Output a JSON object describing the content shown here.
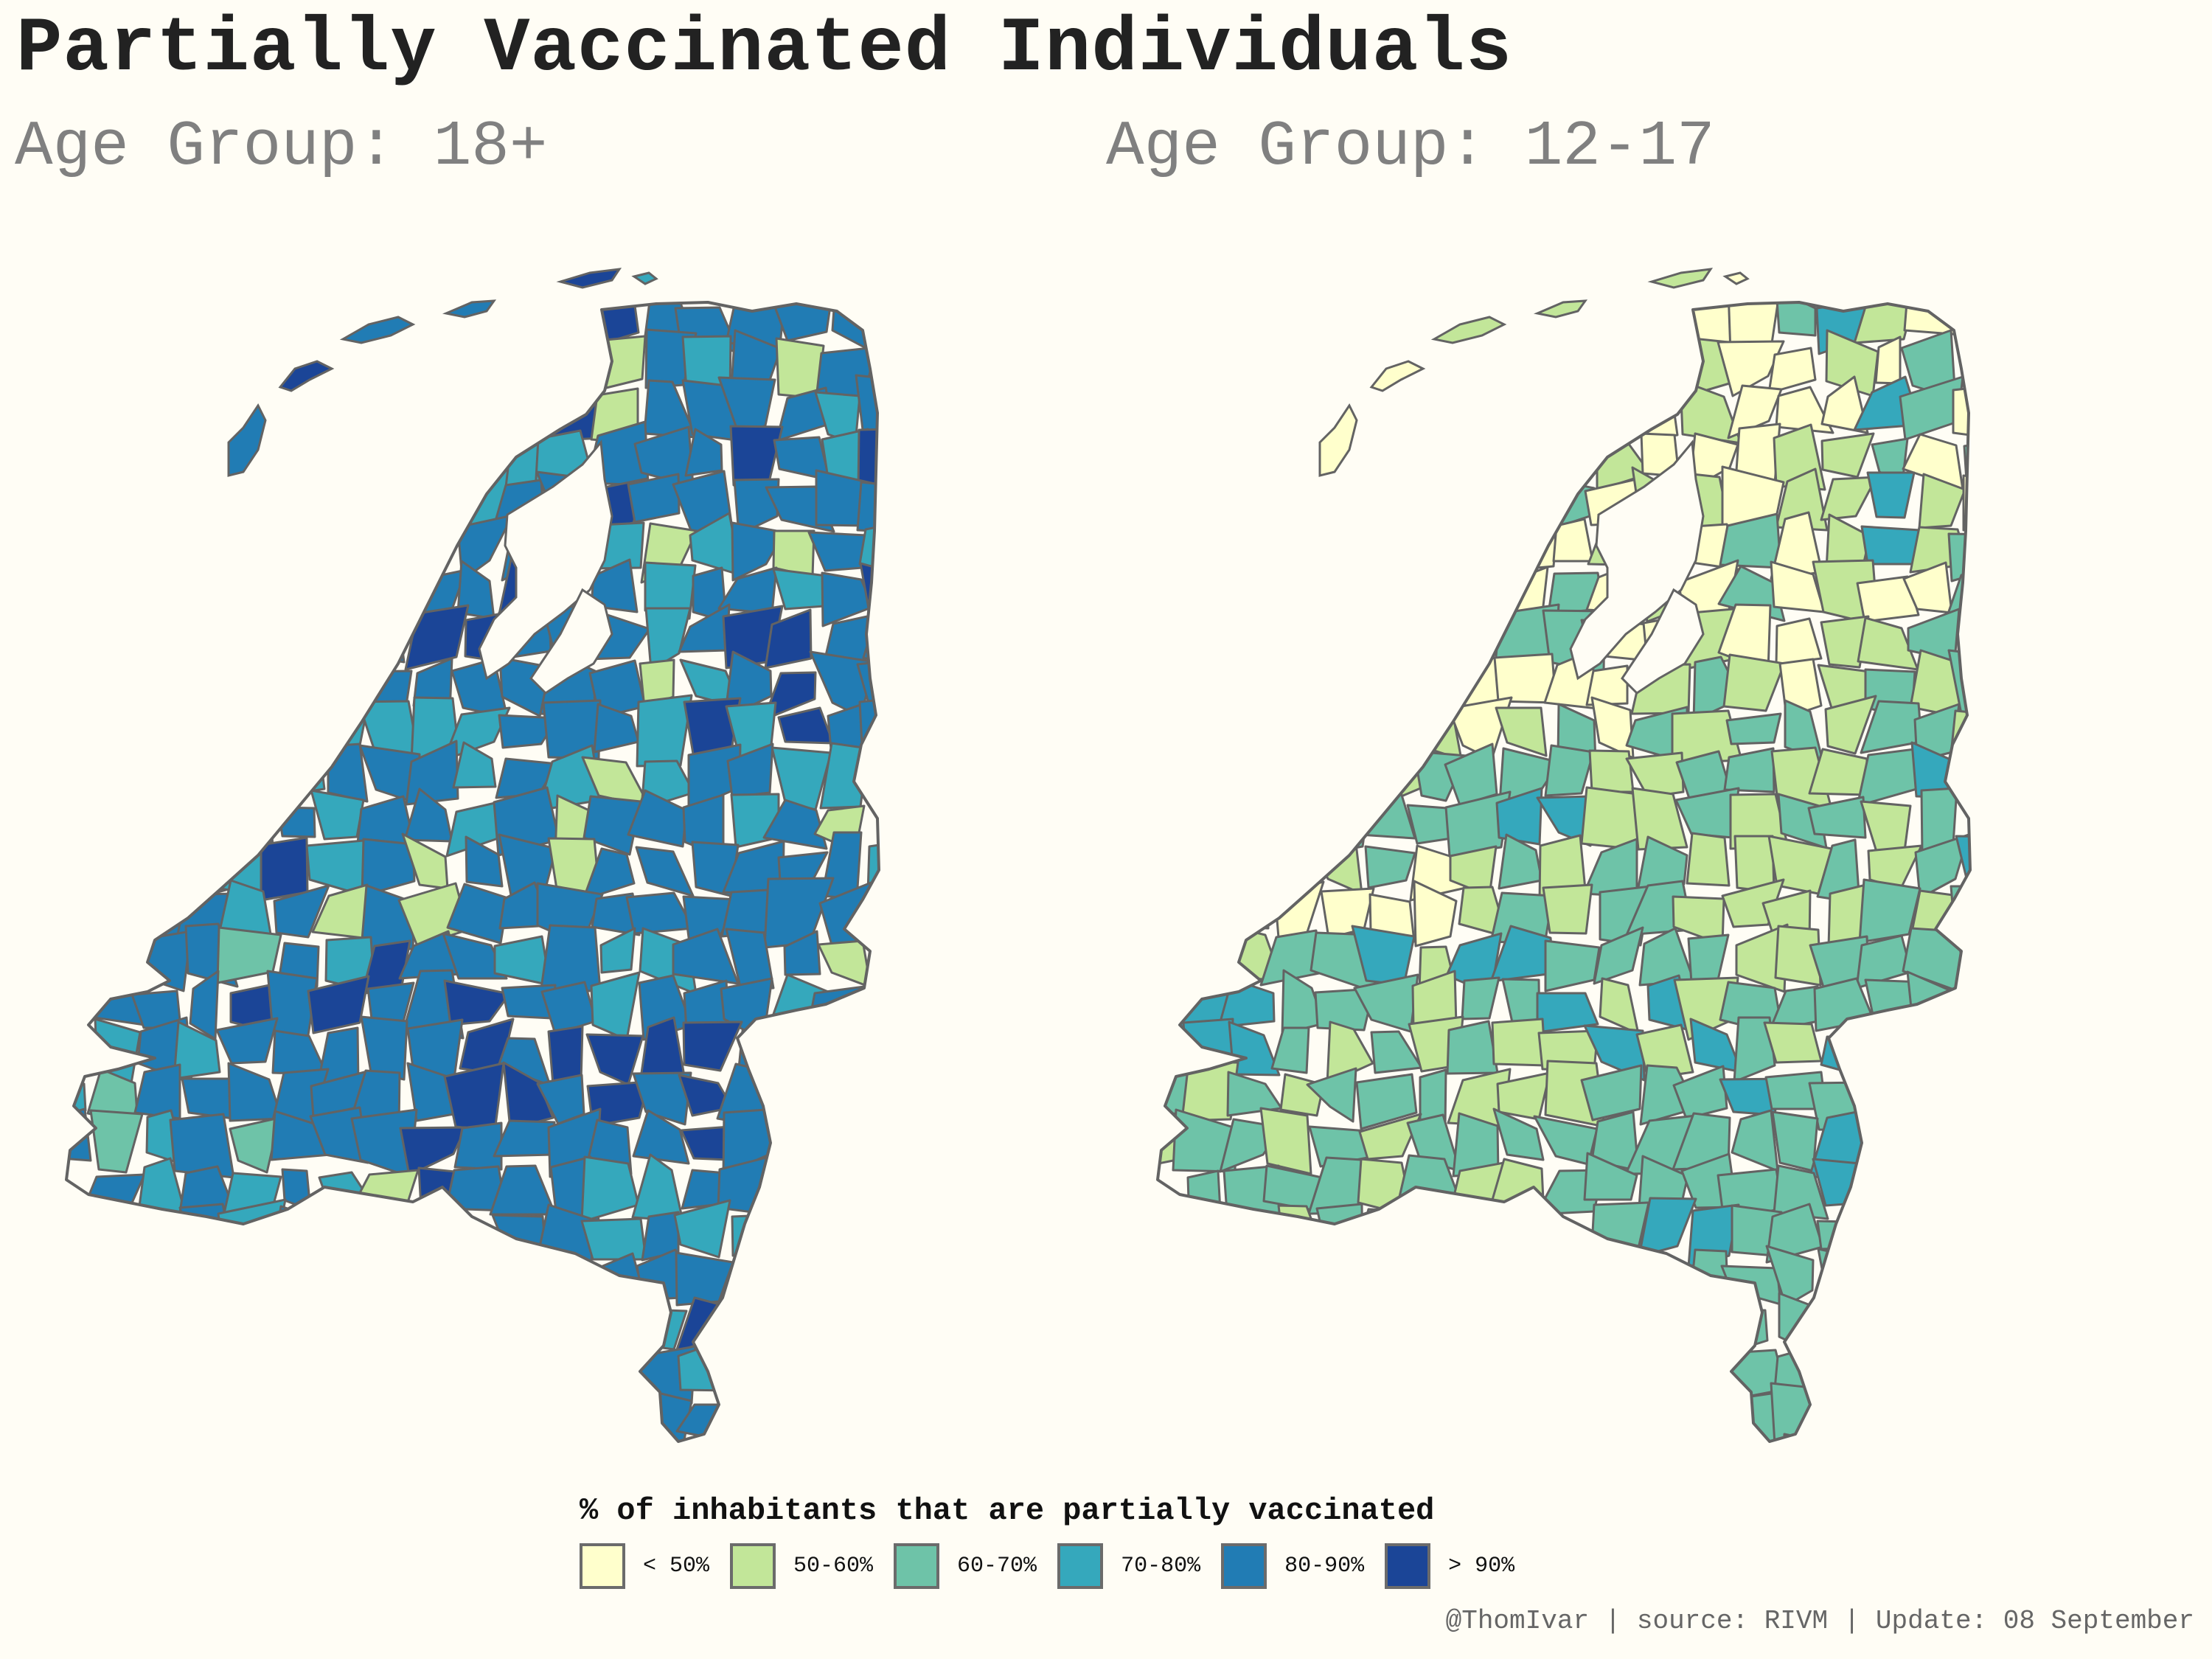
{
  "title": "Partially Vaccinated Individuals",
  "panels": [
    {
      "subtitle": "Age Group: 18+"
    },
    {
      "subtitle": "Age Group: 12-17"
    }
  ],
  "legend": {
    "title": "% of inhabitants that are partially vaccinated",
    "items": [
      {
        "label": "< 50%",
        "color": "#ffffcc"
      },
      {
        "label": "50-60%",
        "color": "#c2e699"
      },
      {
        "label": "60-70%",
        "color": "#6ec3a8"
      },
      {
        "label": "70-80%",
        "color": "#35a8bc"
      },
      {
        "label": "80-90%",
        "color": "#217cb4"
      },
      {
        "label": "> 90%",
        "color": "#1b4597"
      }
    ]
  },
  "caption": "@ThomIvar | source: RIVM | Update: 08 September",
  "border_color": "#636363",
  "background_color": "#fffdf5"
}
